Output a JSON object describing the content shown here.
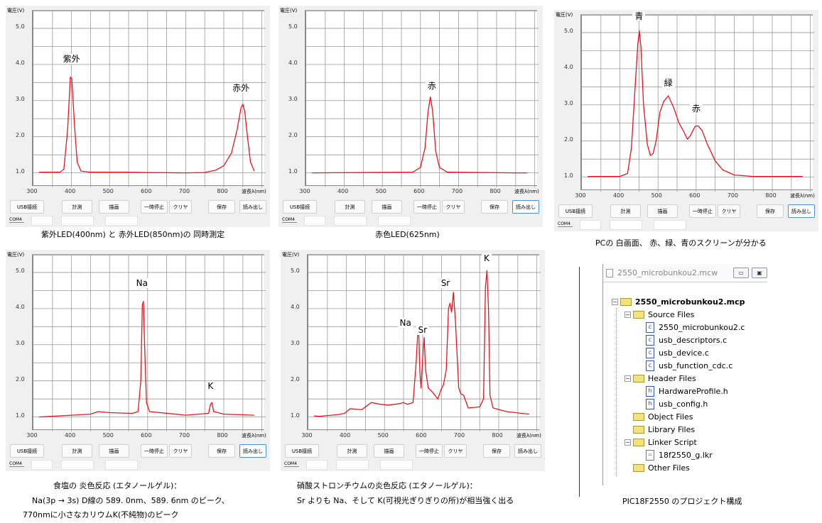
{
  "buttons": [
    "USB接続",
    "計測",
    "描画",
    "一時停止",
    "クリヤ",
    "保存",
    "読み出し"
  ],
  "com_label": "COM4",
  "axis": {
    "ylabel": "電圧(V)",
    "xlabel": "波長λ(nm)",
    "xticks": [
      "300",
      "400",
      "500",
      "600",
      "700",
      "800"
    ],
    "yticks": [
      "1.0",
      "2.0",
      "3.0",
      "4.0",
      "5.0"
    ]
  },
  "chart_data": [
    {
      "type": "line",
      "xlim": [
        300,
        910
      ],
      "ylim": [
        0.6,
        5.47
      ],
      "grid": true,
      "line_color": "#e8141c",
      "read_button_selected": false,
      "points": [
        [
          315,
          1.02
        ],
        [
          370,
          1.02
        ],
        [
          380,
          1.1
        ],
        [
          390,
          2.2
        ],
        [
          397,
          3.65
        ],
        [
          401,
          3.6
        ],
        [
          408,
          2.3
        ],
        [
          415,
          1.3
        ],
        [
          425,
          1.05
        ],
        [
          450,
          1.02
        ],
        [
          545,
          1.02
        ],
        [
          600,
          1.01
        ],
        [
          700,
          1.0
        ],
        [
          750,
          1.01
        ],
        [
          780,
          1.08
        ],
        [
          800,
          1.2
        ],
        [
          820,
          1.55
        ],
        [
          835,
          2.2
        ],
        [
          845,
          2.8
        ],
        [
          850,
          2.9
        ],
        [
          855,
          2.7
        ],
        [
          862,
          2.0
        ],
        [
          870,
          1.3
        ],
        [
          880,
          1.05
        ]
      ],
      "annotations": [
        {
          "text": "紫外",
          "x": 400,
          "y": 4.15
        },
        {
          "text": "赤外",
          "x": 845,
          "y": 3.35
        }
      ],
      "caption": [
        "紫外LED(400nm) と 赤外LED(850nm)の 同時測定"
      ]
    },
    {
      "type": "line",
      "xlim": [
        300,
        910
      ],
      "ylim": [
        0.6,
        5.47
      ],
      "grid": true,
      "line_color": "#e8141c",
      "read_button_selected": true,
      "points": [
        [
          315,
          1.0
        ],
        [
          580,
          1.02
        ],
        [
          600,
          1.15
        ],
        [
          612,
          1.7
        ],
        [
          620,
          2.7
        ],
        [
          626,
          3.1
        ],
        [
          632,
          2.7
        ],
        [
          640,
          1.6
        ],
        [
          650,
          1.15
        ],
        [
          670,
          1.02
        ],
        [
          850,
          1.0
        ],
        [
          880,
          1.0
        ]
      ],
      "annotations": [
        {
          "text": "赤",
          "x": 630,
          "y": 3.4
        }
      ],
      "caption": [
        "赤色LED(625nm)"
      ]
    },
    {
      "type": "line",
      "xlim": [
        300,
        910
      ],
      "ylim": [
        0.6,
        5.47
      ],
      "grid": true,
      "line_color": "#e8141c",
      "read_button_selected": true,
      "points": [
        [
          315,
          1.02
        ],
        [
          400,
          1.02
        ],
        [
          420,
          1.1
        ],
        [
          430,
          1.8
        ],
        [
          440,
          3.5
        ],
        [
          447,
          4.7
        ],
        [
          451,
          5.05
        ],
        [
          455,
          4.6
        ],
        [
          462,
          3.0
        ],
        [
          472,
          1.9
        ],
        [
          480,
          1.6
        ],
        [
          487,
          1.65
        ],
        [
          495,
          2.0
        ],
        [
          505,
          2.8
        ],
        [
          515,
          3.1
        ],
        [
          527,
          3.25
        ],
        [
          540,
          2.95
        ],
        [
          555,
          2.5
        ],
        [
          568,
          2.25
        ],
        [
          577,
          2.05
        ],
        [
          585,
          2.15
        ],
        [
          597,
          2.4
        ],
        [
          605,
          2.42
        ],
        [
          615,
          2.3
        ],
        [
          630,
          1.9
        ],
        [
          650,
          1.45
        ],
        [
          670,
          1.2
        ],
        [
          700,
          1.06
        ],
        [
          750,
          1.02
        ],
        [
          880,
          1.02
        ]
      ],
      "annotations": [
        {
          "text": "青",
          "x": 450,
          "y": 5.45
        },
        {
          "text": "緑",
          "x": 527,
          "y": 3.6
        },
        {
          "text": "赤",
          "x": 600,
          "y": 2.9
        }
      ],
      "caption": [
        "PCの 白画面、 赤、緑、青のスクリーンが分かる"
      ]
    },
    {
      "type": "line",
      "xlim": [
        300,
        910
      ],
      "ylim": [
        0.6,
        5.47
      ],
      "grid": true,
      "line_color": "#e8141c",
      "read_button_selected": true,
      "points": [
        [
          315,
          1.0
        ],
        [
          400,
          1.05
        ],
        [
          450,
          1.08
        ],
        [
          470,
          1.15
        ],
        [
          500,
          1.12
        ],
        [
          560,
          1.1
        ],
        [
          575,
          1.15
        ],
        [
          582,
          2.0
        ],
        [
          586,
          4.1
        ],
        [
          589,
          4.2
        ],
        [
          592,
          3.0
        ],
        [
          597,
          1.4
        ],
        [
          605,
          1.15
        ],
        [
          700,
          1.05
        ],
        [
          760,
          1.1
        ],
        [
          765,
          1.35
        ],
        [
          769,
          1.4
        ],
        [
          773,
          1.15
        ],
        [
          800,
          1.08
        ],
        [
          880,
          1.05
        ]
      ],
      "annotations": [
        {
          "text": "Na",
          "x": 585,
          "y": 4.7
        },
        {
          "text": "K",
          "x": 765,
          "y": 1.85
        }
      ],
      "caption": [
        "食塩の 炎色反応 (エタノールゲル)：",
        "Na(3p → 3s) D線の 589. 0nm、589. 6nm のピーク、",
        "770nmに小さなカリウムK(不純物)のピーク"
      ]
    },
    {
      "type": "line",
      "xlim": [
        300,
        910
      ],
      "ylim": [
        0.6,
        5.47
      ],
      "grid": true,
      "line_color": "#e8141c",
      "read_button_selected": false,
      "points": [
        [
          315,
          1.03
        ],
        [
          330,
          1.02
        ],
        [
          380,
          1.07
        ],
        [
          395,
          1.1
        ],
        [
          410,
          1.23
        ],
        [
          440,
          1.2
        ],
        [
          465,
          1.4
        ],
        [
          490,
          1.35
        ],
        [
          510,
          1.33
        ],
        [
          540,
          1.37
        ],
        [
          550,
          1.4
        ],
        [
          560,
          1.35
        ],
        [
          575,
          1.4
        ],
        [
          583,
          2.5
        ],
        [
          587,
          3.3
        ],
        [
          590,
          3.3
        ],
        [
          593,
          2.2
        ],
        [
          596,
          1.8
        ],
        [
          600,
          2.6
        ],
        [
          604,
          3.2
        ],
        [
          608,
          2.3
        ],
        [
          615,
          1.8
        ],
        [
          625,
          1.7
        ],
        [
          640,
          1.5
        ],
        [
          648,
          1.75
        ],
        [
          655,
          1.9
        ],
        [
          662,
          2.3
        ],
        [
          668,
          4.0
        ],
        [
          672,
          4.15
        ],
        [
          676,
          3.9
        ],
        [
          681,
          4.45
        ],
        [
          686,
          3.7
        ],
        [
          695,
          1.8
        ],
        [
          700,
          1.65
        ],
        [
          708,
          1.6
        ],
        [
          720,
          1.25
        ],
        [
          750,
          1.28
        ],
        [
          760,
          1.5
        ],
        [
          765,
          4.6
        ],
        [
          769,
          5.05
        ],
        [
          773,
          4.0
        ],
        [
          777,
          1.6
        ],
        [
          785,
          1.25
        ],
        [
          820,
          1.15
        ],
        [
          860,
          1.1
        ],
        [
          880,
          1.08
        ]
      ],
      "annotations": [
        {
          "text": "Na",
          "x": 555,
          "y": 3.6
        },
        {
          "text": "Sr",
          "x": 600,
          "y": 3.4
        },
        {
          "text": "Sr",
          "x": 660,
          "y": 4.7
        },
        {
          "text": "K",
          "x": 768,
          "y": 5.4
        }
      ],
      "caption": [
        "硝酸ストロンチウムの炎色反応 (エタノールゲル)：",
        "Sr よりも Na、そして K(可視光ぎりぎりの所)が相当強く出る"
      ]
    }
  ],
  "project": {
    "window_title": "2550_microbunkou2.mcw",
    "items": [
      {
        "label": "2550_microbunkou2.mcp",
        "kind": "folder",
        "level": 0,
        "expander": "−",
        "bold": true
      },
      {
        "label": "Source Files",
        "kind": "folder",
        "level": 1,
        "expander": "−"
      },
      {
        "label": "2550_microbunkou2.c",
        "kind": "c",
        "level": 2
      },
      {
        "label": "usb_descriptors.c",
        "kind": "c",
        "level": 2
      },
      {
        "label": "usb_device.c",
        "kind": "c",
        "level": 2
      },
      {
        "label": "usb_function_cdc.c",
        "kind": "c",
        "level": 2
      },
      {
        "label": "Header Files",
        "kind": "folder",
        "level": 1,
        "expander": "−"
      },
      {
        "label": "HardwareProfile.h",
        "kind": "h",
        "level": 2
      },
      {
        "label": "usb_config.h",
        "kind": "h",
        "level": 2
      },
      {
        "label": "Object Files",
        "kind": "folder",
        "level": 1
      },
      {
        "label": "Library Files",
        "kind": "folder",
        "level": 1
      },
      {
        "label": "Linker Script",
        "kind": "folder",
        "level": 1,
        "expander": "−"
      },
      {
        "label": "18f2550_g.lkr",
        "kind": "lkr",
        "level": 2
      },
      {
        "label": "Other Files",
        "kind": "folder",
        "level": 1
      }
    ],
    "caption": "PIC18F2550 のプロジェクト構成"
  }
}
